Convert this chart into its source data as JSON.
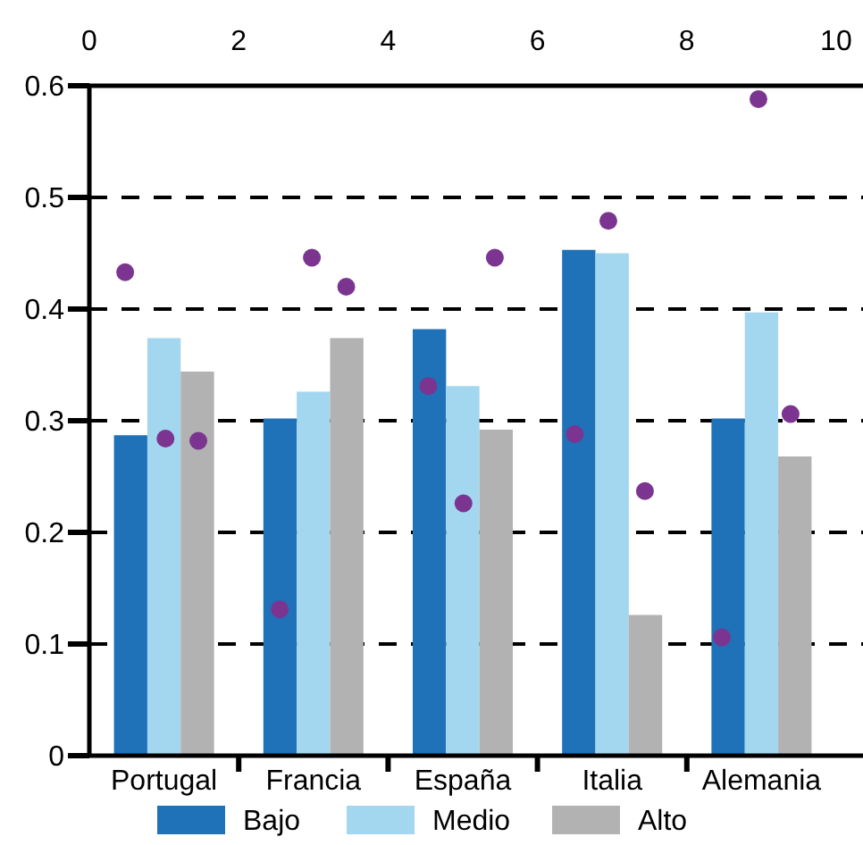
{
  "chart_data": {
    "type": "bar",
    "categories": [
      "Portugal",
      "Francia",
      "España",
      "Italia",
      "Alemania"
    ],
    "series": [
      {
        "name": "Bajo",
        "color": "#1f71b8",
        "values": [
          0.287,
          0.302,
          0.382,
          0.453,
          0.302
        ]
      },
      {
        "name": "Medio",
        "color": "#a3d7ef",
        "values": [
          0.374,
          0.326,
          0.331,
          0.45,
          0.397
        ]
      },
      {
        "name": "Alto",
        "color": "#b2b2b2",
        "values": [
          0.344,
          0.374,
          0.292,
          0.126,
          0.268
        ]
      },
      {
        "type": "scatter",
        "axis": "x2",
        "color": "#7b3590",
        "marker": "circle",
        "x": [
          0.48,
          1.02,
          1.46,
          2.55,
          2.98,
          3.44,
          4.54,
          5.01,
          5.43,
          6.5,
          6.95,
          7.44,
          8.47,
          8.96,
          9.39
        ],
        "values": [
          0.433,
          0.284,
          0.282,
          0.131,
          0.446,
          0.42,
          0.331,
          0.226,
          0.446,
          0.288,
          0.479,
          0.237,
          0.106,
          0.588,
          0.306
        ]
      }
    ],
    "ylim": [
      0,
      0.6
    ],
    "yticks": [
      0,
      0.1,
      0.2,
      0.3,
      0.4,
      0.5,
      0.6
    ],
    "x2lim": [
      0,
      10.36
    ],
    "x2ticks": [
      0,
      2,
      4,
      6,
      8,
      10
    ],
    "grid": "y",
    "legend": "bottom"
  }
}
